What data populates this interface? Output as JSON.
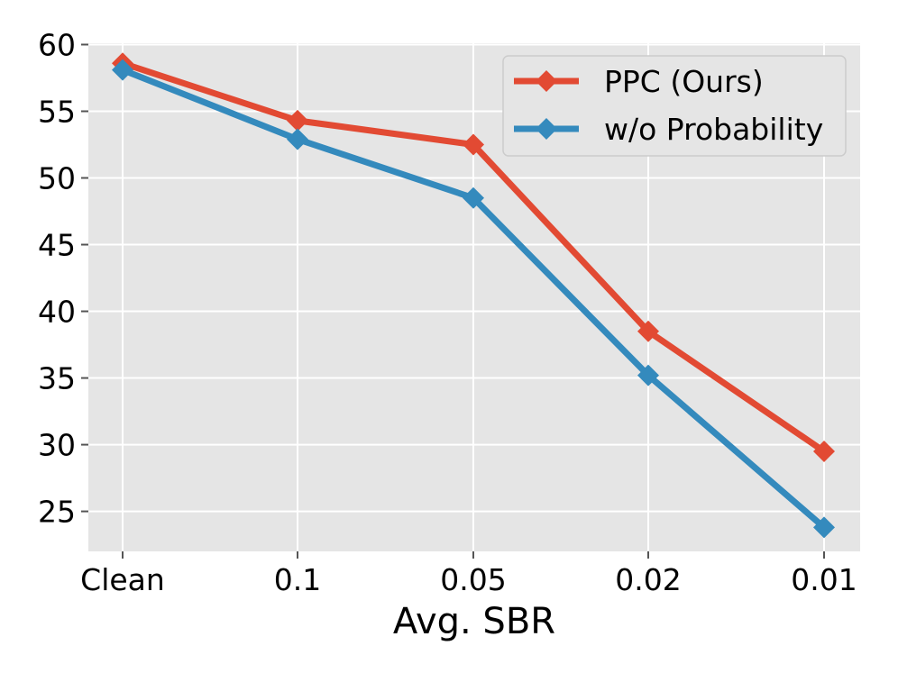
{
  "chart_data": {
    "type": "line",
    "title": "",
    "xlabel": "Avg. SBR",
    "ylabel": "",
    "categories": [
      "Clean",
      "0.1",
      "0.05",
      "0.02",
      "0.01"
    ],
    "ylim": [
      22,
      60.1
    ],
    "yticks": [
      25,
      30,
      35,
      40,
      45,
      50,
      55,
      60
    ],
    "ytick_labels": [
      "25",
      "30",
      "35",
      "40",
      "45",
      "50",
      "55",
      "60"
    ],
    "grid": true,
    "legend_position": "top-right",
    "series": [
      {
        "name": "PPC (Ours)",
        "color": "#E24A33",
        "marker": "diamond",
        "values": [
          58.6,
          54.3,
          52.5,
          38.5,
          29.5
        ]
      },
      {
        "name": "w/o Probability",
        "color": "#348ABD",
        "marker": "diamond",
        "values": [
          58.1,
          52.9,
          48.5,
          35.2,
          23.8
        ]
      }
    ],
    "background_color": "#E5E5E5",
    "grid_color": "#FFFFFF"
  }
}
